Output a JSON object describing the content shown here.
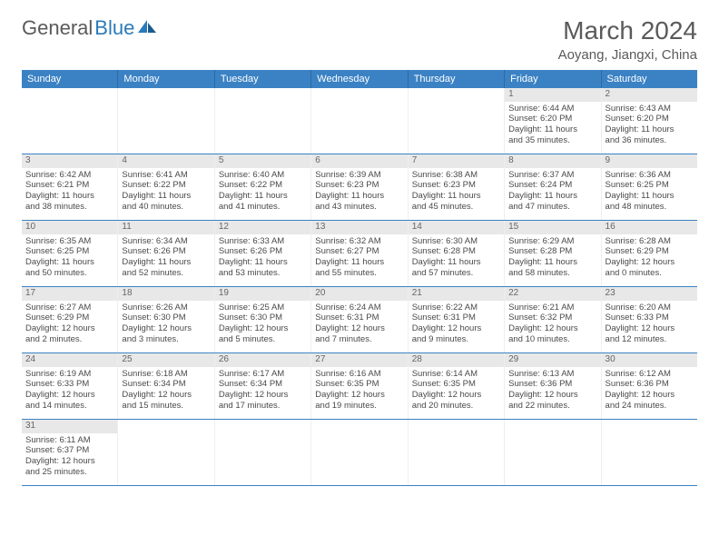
{
  "logo": {
    "text1": "General",
    "text2": "Blue"
  },
  "title": "March 2024",
  "location": "Aoyang, Jiangxi, China",
  "colors": {
    "header_bg": "#3b82c4",
    "header_text": "#ffffff",
    "daynum_bg": "#e8e8e8",
    "row_border": "#3b82c4",
    "text": "#4a4a4a",
    "title_text": "#5a5a5a"
  },
  "weekdays": [
    "Sunday",
    "Monday",
    "Tuesday",
    "Wednesday",
    "Thursday",
    "Friday",
    "Saturday"
  ],
  "weeks": [
    [
      null,
      null,
      null,
      null,
      null,
      {
        "num": "1",
        "sunrise": "Sunrise: 6:44 AM",
        "sunset": "Sunset: 6:20 PM",
        "daylight1": "Daylight: 11 hours",
        "daylight2": "and 35 minutes."
      },
      {
        "num": "2",
        "sunrise": "Sunrise: 6:43 AM",
        "sunset": "Sunset: 6:20 PM",
        "daylight1": "Daylight: 11 hours",
        "daylight2": "and 36 minutes."
      }
    ],
    [
      {
        "num": "3",
        "sunrise": "Sunrise: 6:42 AM",
        "sunset": "Sunset: 6:21 PM",
        "daylight1": "Daylight: 11 hours",
        "daylight2": "and 38 minutes."
      },
      {
        "num": "4",
        "sunrise": "Sunrise: 6:41 AM",
        "sunset": "Sunset: 6:22 PM",
        "daylight1": "Daylight: 11 hours",
        "daylight2": "and 40 minutes."
      },
      {
        "num": "5",
        "sunrise": "Sunrise: 6:40 AM",
        "sunset": "Sunset: 6:22 PM",
        "daylight1": "Daylight: 11 hours",
        "daylight2": "and 41 minutes."
      },
      {
        "num": "6",
        "sunrise": "Sunrise: 6:39 AM",
        "sunset": "Sunset: 6:23 PM",
        "daylight1": "Daylight: 11 hours",
        "daylight2": "and 43 minutes."
      },
      {
        "num": "7",
        "sunrise": "Sunrise: 6:38 AM",
        "sunset": "Sunset: 6:23 PM",
        "daylight1": "Daylight: 11 hours",
        "daylight2": "and 45 minutes."
      },
      {
        "num": "8",
        "sunrise": "Sunrise: 6:37 AM",
        "sunset": "Sunset: 6:24 PM",
        "daylight1": "Daylight: 11 hours",
        "daylight2": "and 47 minutes."
      },
      {
        "num": "9",
        "sunrise": "Sunrise: 6:36 AM",
        "sunset": "Sunset: 6:25 PM",
        "daylight1": "Daylight: 11 hours",
        "daylight2": "and 48 minutes."
      }
    ],
    [
      {
        "num": "10",
        "sunrise": "Sunrise: 6:35 AM",
        "sunset": "Sunset: 6:25 PM",
        "daylight1": "Daylight: 11 hours",
        "daylight2": "and 50 minutes."
      },
      {
        "num": "11",
        "sunrise": "Sunrise: 6:34 AM",
        "sunset": "Sunset: 6:26 PM",
        "daylight1": "Daylight: 11 hours",
        "daylight2": "and 52 minutes."
      },
      {
        "num": "12",
        "sunrise": "Sunrise: 6:33 AM",
        "sunset": "Sunset: 6:26 PM",
        "daylight1": "Daylight: 11 hours",
        "daylight2": "and 53 minutes."
      },
      {
        "num": "13",
        "sunrise": "Sunrise: 6:32 AM",
        "sunset": "Sunset: 6:27 PM",
        "daylight1": "Daylight: 11 hours",
        "daylight2": "and 55 minutes."
      },
      {
        "num": "14",
        "sunrise": "Sunrise: 6:30 AM",
        "sunset": "Sunset: 6:28 PM",
        "daylight1": "Daylight: 11 hours",
        "daylight2": "and 57 minutes."
      },
      {
        "num": "15",
        "sunrise": "Sunrise: 6:29 AM",
        "sunset": "Sunset: 6:28 PM",
        "daylight1": "Daylight: 11 hours",
        "daylight2": "and 58 minutes."
      },
      {
        "num": "16",
        "sunrise": "Sunrise: 6:28 AM",
        "sunset": "Sunset: 6:29 PM",
        "daylight1": "Daylight: 12 hours",
        "daylight2": "and 0 minutes."
      }
    ],
    [
      {
        "num": "17",
        "sunrise": "Sunrise: 6:27 AM",
        "sunset": "Sunset: 6:29 PM",
        "daylight1": "Daylight: 12 hours",
        "daylight2": "and 2 minutes."
      },
      {
        "num": "18",
        "sunrise": "Sunrise: 6:26 AM",
        "sunset": "Sunset: 6:30 PM",
        "daylight1": "Daylight: 12 hours",
        "daylight2": "and 3 minutes."
      },
      {
        "num": "19",
        "sunrise": "Sunrise: 6:25 AM",
        "sunset": "Sunset: 6:30 PM",
        "daylight1": "Daylight: 12 hours",
        "daylight2": "and 5 minutes."
      },
      {
        "num": "20",
        "sunrise": "Sunrise: 6:24 AM",
        "sunset": "Sunset: 6:31 PM",
        "daylight1": "Daylight: 12 hours",
        "daylight2": "and 7 minutes."
      },
      {
        "num": "21",
        "sunrise": "Sunrise: 6:22 AM",
        "sunset": "Sunset: 6:31 PM",
        "daylight1": "Daylight: 12 hours",
        "daylight2": "and 9 minutes."
      },
      {
        "num": "22",
        "sunrise": "Sunrise: 6:21 AM",
        "sunset": "Sunset: 6:32 PM",
        "daylight1": "Daylight: 12 hours",
        "daylight2": "and 10 minutes."
      },
      {
        "num": "23",
        "sunrise": "Sunrise: 6:20 AM",
        "sunset": "Sunset: 6:33 PM",
        "daylight1": "Daylight: 12 hours",
        "daylight2": "and 12 minutes."
      }
    ],
    [
      {
        "num": "24",
        "sunrise": "Sunrise: 6:19 AM",
        "sunset": "Sunset: 6:33 PM",
        "daylight1": "Daylight: 12 hours",
        "daylight2": "and 14 minutes."
      },
      {
        "num": "25",
        "sunrise": "Sunrise: 6:18 AM",
        "sunset": "Sunset: 6:34 PM",
        "daylight1": "Daylight: 12 hours",
        "daylight2": "and 15 minutes."
      },
      {
        "num": "26",
        "sunrise": "Sunrise: 6:17 AM",
        "sunset": "Sunset: 6:34 PM",
        "daylight1": "Daylight: 12 hours",
        "daylight2": "and 17 minutes."
      },
      {
        "num": "27",
        "sunrise": "Sunrise: 6:16 AM",
        "sunset": "Sunset: 6:35 PM",
        "daylight1": "Daylight: 12 hours",
        "daylight2": "and 19 minutes."
      },
      {
        "num": "28",
        "sunrise": "Sunrise: 6:14 AM",
        "sunset": "Sunset: 6:35 PM",
        "daylight1": "Daylight: 12 hours",
        "daylight2": "and 20 minutes."
      },
      {
        "num": "29",
        "sunrise": "Sunrise: 6:13 AM",
        "sunset": "Sunset: 6:36 PM",
        "daylight1": "Daylight: 12 hours",
        "daylight2": "and 22 minutes."
      },
      {
        "num": "30",
        "sunrise": "Sunrise: 6:12 AM",
        "sunset": "Sunset: 6:36 PM",
        "daylight1": "Daylight: 12 hours",
        "daylight2": "and 24 minutes."
      }
    ],
    [
      {
        "num": "31",
        "sunrise": "Sunrise: 6:11 AM",
        "sunset": "Sunset: 6:37 PM",
        "daylight1": "Daylight: 12 hours",
        "daylight2": "and 25 minutes."
      },
      null,
      null,
      null,
      null,
      null,
      null
    ]
  ]
}
